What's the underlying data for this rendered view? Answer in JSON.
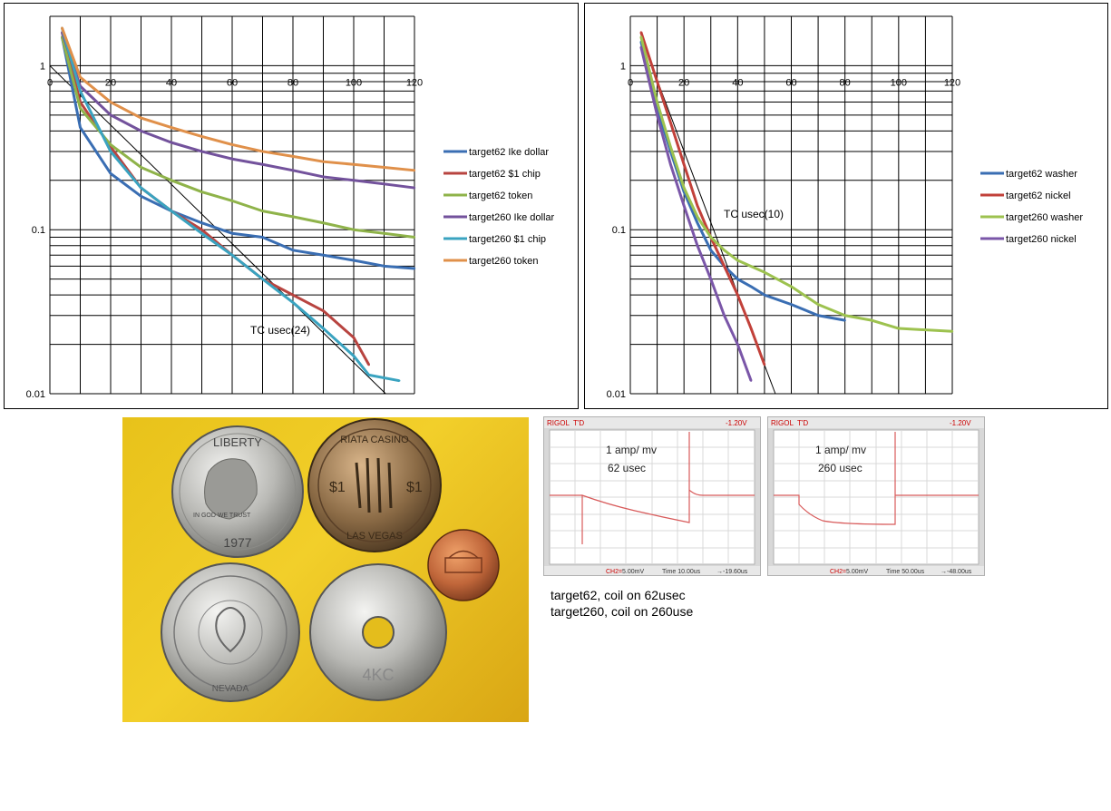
{
  "chart_data": [
    {
      "type": "line",
      "title": "",
      "xlabel": "",
      "ylabel": "",
      "x_ticks": [
        "0",
        "20",
        "40",
        "60",
        "80",
        "100",
        "120"
      ],
      "y_ticks": [
        "1",
        "0.1",
        "0.01"
      ],
      "xlim": [
        0,
        120
      ],
      "ylim": [
        0.01,
        2
      ],
      "y_scale": "log",
      "grid": true,
      "legend_position": "right",
      "annotation": "TC usec(24)",
      "reference_line": {
        "tau": 24,
        "start": 1.0
      },
      "series": [
        {
          "name": "target62 Ike dollar",
          "color": "#3a6eb3",
          "x": [
            4,
            10,
            20,
            30,
            40,
            50,
            60,
            70,
            80,
            90,
            100,
            110,
            120
          ],
          "y": [
            1.5,
            0.42,
            0.22,
            0.16,
            0.13,
            0.11,
            0.095,
            0.09,
            0.075,
            0.07,
            0.065,
            0.06,
            0.058
          ]
        },
        {
          "name": "target62 $1 chip",
          "color": "#b84440",
          "x": [
            4,
            10,
            20,
            30,
            40,
            50,
            60,
            70,
            80,
            90,
            100,
            105
          ],
          "y": [
            1.6,
            0.6,
            0.32,
            0.18,
            0.13,
            0.1,
            0.07,
            0.05,
            0.04,
            0.032,
            0.022,
            0.015
          ]
        },
        {
          "name": "target62 token",
          "color": "#8fb34a",
          "x": [
            4,
            10,
            20,
            30,
            40,
            50,
            60,
            70,
            80,
            90,
            100,
            110,
            120
          ],
          "y": [
            1.5,
            0.55,
            0.33,
            0.24,
            0.2,
            0.17,
            0.15,
            0.13,
            0.12,
            0.11,
            0.1,
            0.095,
            0.09
          ]
        },
        {
          "name": "target260 Ike dollar",
          "color": "#73529c",
          "x": [
            4,
            10,
            20,
            30,
            40,
            50,
            60,
            70,
            80,
            90,
            100,
            110,
            120
          ],
          "y": [
            1.6,
            0.75,
            0.5,
            0.4,
            0.34,
            0.3,
            0.27,
            0.25,
            0.23,
            0.21,
            0.2,
            0.19,
            0.18
          ]
        },
        {
          "name": "target260 $1 chip",
          "color": "#3aa3c0",
          "x": [
            4,
            10,
            20,
            30,
            40,
            50,
            60,
            70,
            80,
            90,
            100,
            105,
            115
          ],
          "y": [
            1.7,
            0.7,
            0.3,
            0.18,
            0.13,
            0.095,
            0.07,
            0.05,
            0.036,
            0.025,
            0.017,
            0.013,
            0.012
          ]
        },
        {
          "name": "target260 token",
          "color": "#e0904a",
          "x": [
            4,
            10,
            20,
            30,
            40,
            50,
            60,
            70,
            80,
            90,
            100,
            110,
            120
          ],
          "y": [
            1.7,
            0.85,
            0.6,
            0.48,
            0.42,
            0.37,
            0.33,
            0.3,
            0.28,
            0.26,
            0.25,
            0.24,
            0.23
          ]
        }
      ]
    },
    {
      "type": "line",
      "title": "",
      "xlabel": "",
      "ylabel": "",
      "x_ticks": [
        "0",
        "20",
        "40",
        "60",
        "80",
        "100",
        "120"
      ],
      "y_ticks": [
        "1",
        "0.1",
        "0.01"
      ],
      "xlim": [
        0,
        120
      ],
      "ylim": [
        0.01,
        2
      ],
      "y_scale": "log",
      "grid": true,
      "legend_position": "right",
      "annotation": "TC usec(10)",
      "reference_line": {
        "tau": 10,
        "start": 1.0,
        "x_start": 8
      },
      "series": [
        {
          "name": "target62 washer",
          "color": "#3a6eb3",
          "x": [
            4,
            10,
            15,
            20,
            25,
            30,
            35,
            40,
            45,
            50,
            60,
            70,
            80
          ],
          "y": [
            1.4,
            0.55,
            0.3,
            0.17,
            0.11,
            0.075,
            0.06,
            0.05,
            0.045,
            0.04,
            0.035,
            0.03,
            0.028
          ]
        },
        {
          "name": "target62 nickel",
          "color": "#c2413a",
          "x": [
            4,
            10,
            15,
            20,
            25,
            30,
            35,
            40,
            45,
            50
          ],
          "y": [
            1.6,
            0.8,
            0.45,
            0.25,
            0.14,
            0.09,
            0.06,
            0.04,
            0.025,
            0.015
          ]
        },
        {
          "name": "target260 washer",
          "color": "#9dc24f",
          "x": [
            4,
            10,
            15,
            20,
            25,
            30,
            35,
            40,
            50,
            60,
            70,
            80,
            90,
            100,
            120
          ],
          "y": [
            1.5,
            0.6,
            0.32,
            0.18,
            0.12,
            0.09,
            0.075,
            0.065,
            0.055,
            0.045,
            0.035,
            0.03,
            0.028,
            0.025,
            0.024
          ]
        },
        {
          "name": "target260 nickel",
          "color": "#7a56a8",
          "x": [
            4,
            10,
            15,
            20,
            25,
            30,
            35,
            40,
            45
          ],
          "y": [
            1.3,
            0.5,
            0.25,
            0.14,
            0.08,
            0.05,
            0.03,
            0.02,
            0.012
          ]
        }
      ]
    }
  ],
  "scopes": [
    {
      "brand": "RIGOL",
      "mode": "T'D",
      "trigger": "-1.20V",
      "label1": "1 amp/ mv",
      "label2": "62 usec",
      "ch": "CH2=",
      "volt": "5.00mV",
      "time": "Time 10.00us",
      "offset": "→-19.60us"
    },
    {
      "brand": "RIGOL",
      "mode": "T'D",
      "trigger": "-1.20V",
      "label1": "1 amp/ mv",
      "label2": "260 usec",
      "ch": "CH2=",
      "volt": "5.00mV",
      "time": "Time 50.00us",
      "offset": "→-48.00us"
    }
  ],
  "captions": {
    "line1": "target62, coil on 62usec",
    "line2": "target260, coil on 260use"
  },
  "coins": {
    "ike_top": "LIBERTY",
    "ike_trust": "IN GOD WE TRUST",
    "ike_year": "1977",
    "chip_top": "RIATA CASINO",
    "chip_bottom": "LAS VEGAS",
    "chip_value_left": "$1",
    "chip_value_right": "$1",
    "washer_text": "4KC",
    "token_text": "NEVADA"
  }
}
